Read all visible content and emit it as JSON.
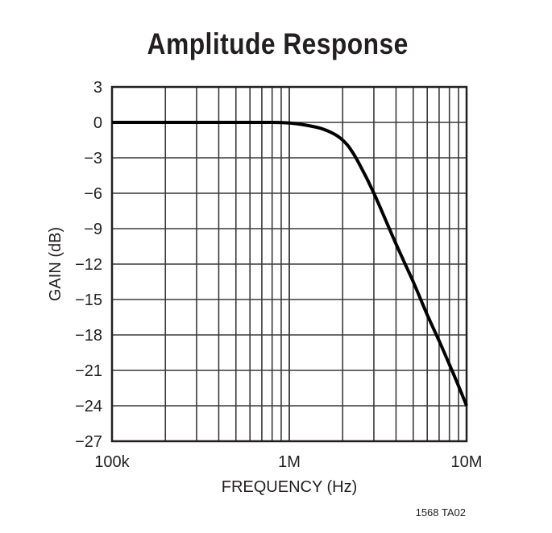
{
  "chart_data": {
    "type": "line",
    "title": "Amplitude Response",
    "xlabel": "FREQUENCY (Hz)",
    "ylabel": "GAIN (dB)",
    "xscale": "log",
    "xlim": [
      100000,
      10000000
    ],
    "ylim": [
      -27,
      3
    ],
    "grid": true,
    "x_tick_labels": [
      "100k",
      "1M",
      "10M"
    ],
    "y_ticks": [
      3,
      0,
      -3,
      -6,
      -9,
      -12,
      -15,
      -18,
      -21,
      -24,
      -27
    ],
    "y_tick_labels": [
      "3",
      "0",
      "−3",
      "−6",
      "−9",
      "−12",
      "−15",
      "−18",
      "−21",
      "−24",
      "−27"
    ],
    "series": [
      {
        "name": "Gain",
        "x": [
          100000,
          500000,
          800000,
          1000000,
          1200000,
          1500000,
          1800000,
          2000000,
          2200000,
          2500000,
          3000000,
          4000000,
          5000000,
          6000000,
          7000000,
          8000000,
          9000000,
          10000000
        ],
        "y": [
          0,
          0,
          0,
          -0.05,
          -0.2,
          -0.5,
          -1.0,
          -1.5,
          -2.2,
          -3.6,
          -6.0,
          -10.3,
          -13.5,
          -16.3,
          -18.5,
          -20.5,
          -22.3,
          -24.0
        ]
      }
    ],
    "annotations": [
      "1568 TA02"
    ]
  }
}
